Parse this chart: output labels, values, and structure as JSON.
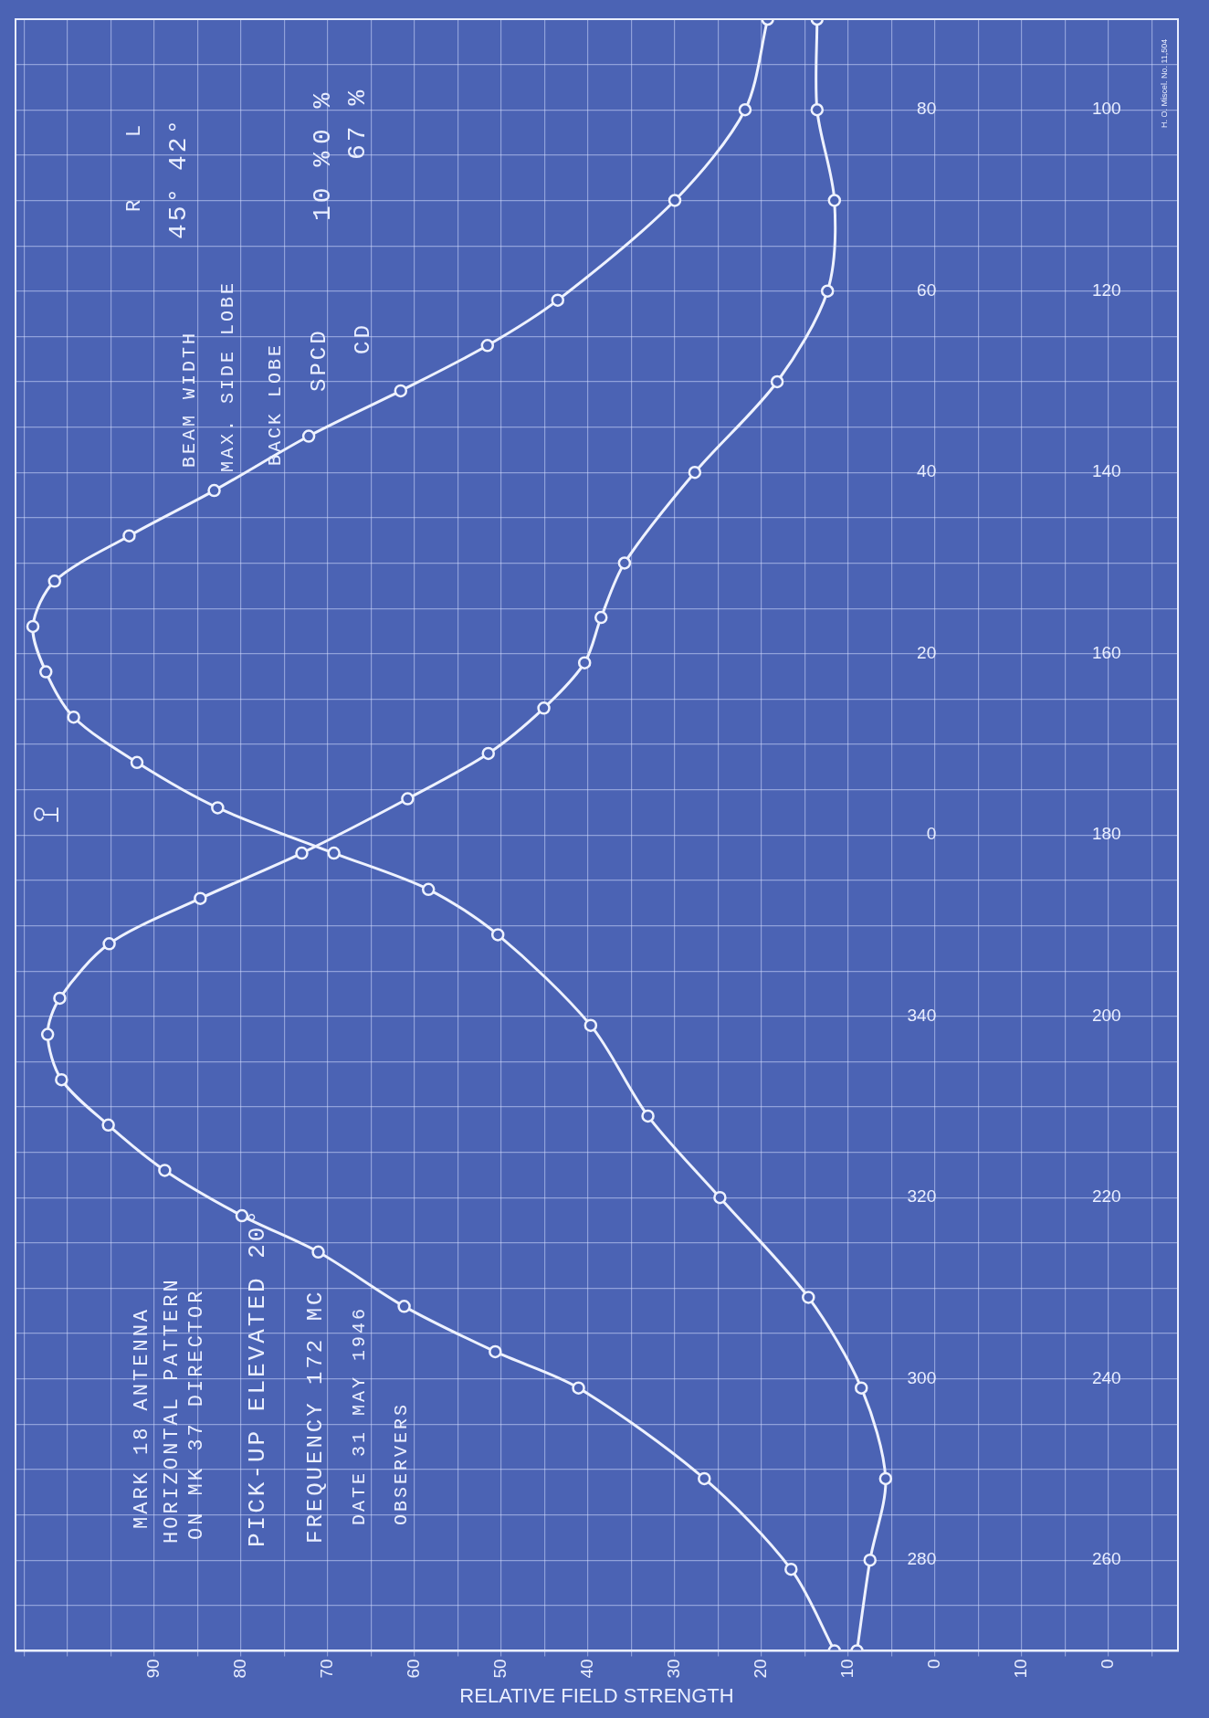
{
  "chart_data": {
    "type": "line",
    "title": "MARK 18 ANTENNA",
    "xlabel": "RELATIVE FIELD STRENGTH",
    "annotations": [
      "HORIZONTAL PATTERN",
      "ON MK 37 DIRECTOR",
      "PICK-UP ELEVATED 20°",
      "FREQUENCY 172 MC",
      "DATE 31 MAY 1946",
      "OBSERVERS",
      "BEAM WIDTH",
      "MAX. SIDE LOBE",
      "BACK LOBE",
      "SPCD",
      "CD",
      "R",
      "L",
      "45°",
      "42°",
      "10 %",
      "0 %",
      "67 %",
      "H. O. Miscel. No. 11,504"
    ],
    "series": [
      {
        "color": "#eef2ff",
        "x": [
          9,
          7.5,
          5.7,
          8.5,
          14.6,
          24.8,
          33.1,
          39.7,
          50.4,
          58.4,
          69.3,
          82.7,
          92,
          99.3,
          102.5,
          104,
          101.5,
          92.9,
          83.1,
          72.2,
          61.6,
          51.6,
          43.5,
          30,
          21.9,
          19.3
        ],
        "values": [
          -90,
          -80,
          -71,
          -61,
          -51,
          -40,
          -31,
          -21,
          -11,
          -6,
          -2,
          3,
          8,
          13,
          18,
          23,
          28,
          33,
          38,
          44,
          49,
          54,
          59,
          70,
          80,
          90
        ]
      },
      {
        "color": "#eef2ff",
        "x": [
          11.6,
          16.6,
          26.6,
          41.1,
          50.7,
          61.2,
          71.1,
          79.9,
          88.8,
          95.3,
          100.7,
          102.3,
          100.9,
          95.2,
          84.7,
          73,
          60.8,
          51.5,
          45.1,
          40.4,
          38.5,
          35.8,
          27.7,
          18.2,
          12.4,
          11.6,
          13.6,
          13.6
        ],
        "values": [
          -90,
          -81,
          -71,
          -61,
          -57,
          -52,
          -46,
          -42,
          -37,
          -32,
          -27,
          -22,
          -18,
          -12,
          -7,
          -2,
          4,
          9,
          14,
          19,
          24,
          30,
          40,
          50,
          60,
          70,
          80,
          90
        ]
      }
    ],
    "xlim": [
      106,
      -28
    ],
    "xticks": [
      {
        "value": 105,
        "label": null
      },
      {
        "value": 100,
        "label": null
      },
      {
        "value": 95,
        "label": null
      },
      90,
      {
        "value": 85,
        "label": null
      },
      80,
      {
        "value": 75,
        "label": null
      },
      70,
      {
        "value": 65,
        "label": null
      },
      60,
      {
        "value": 55,
        "label": null
      },
      50,
      {
        "value": 45,
        "label": null
      },
      40,
      {
        "value": 35,
        "label": null
      },
      30,
      {
        "value": 25,
        "label": null
      },
      20,
      {
        "value": 15,
        "label": null
      },
      10,
      {
        "value": 5,
        "label": null
      },
      0,
      {
        "value": -5,
        "label": null
      },
      {
        "value": -10,
        "label": null
      },
      {
        "value": -15,
        "label": null
      },
      {
        "value": -20,
        "label": null
      },
      {
        "value": -25,
        "label": null
      }
    ],
    "x2lim": [
      126,
      -8
    ],
    "x2ticks": [
      10,
      0
    ],
    "ylim": [
      -90,
      90
    ],
    "yticks": [
      {
        "value": -90,
        "label": null
      },
      {
        "value": -85,
        "label": null
      },
      {
        "value": -80,
        "label": null
      },
      {
        "value": -75,
        "label": null
      },
      {
        "value": -70,
        "label": null
      },
      {
        "value": -65,
        "label": null
      },
      {
        "value": -60,
        "label": null
      },
      {
        "value": -55,
        "label": null
      },
      {
        "value": -50,
        "label": null
      },
      {
        "value": -45,
        "label": null
      },
      {
        "value": -40,
        "label": null
      },
      {
        "value": -35,
        "label": null
      },
      {
        "value": -30,
        "label": null
      },
      {
        "value": -25,
        "label": null
      },
      {
        "value": -20,
        "label": null
      },
      {
        "value": -15,
        "label": null
      },
      {
        "value": -10,
        "label": null
      },
      {
        "value": -5,
        "label": null
      },
      0,
      {
        "value": 5,
        "label": null
      },
      {
        "value": 10,
        "label": null
      },
      {
        "value": 15,
        "label": null
      },
      20,
      {
        "value": 25,
        "label": null
      },
      {
        "value": 30,
        "label": null
      },
      {
        "value": 35,
        "label": null
      },
      40,
      {
        "value": 45,
        "label": null
      },
      {
        "value": 50,
        "label": null
      },
      {
        "value": 55,
        "label": null
      },
      60,
      {
        "value": 65,
        "label": null
      },
      {
        "value": 70,
        "label": null
      },
      {
        "value": 75,
        "label": null
      },
      80,
      {
        "value": 85,
        "label": null
      },
      {
        "value": 90,
        "label": null
      }
    ],
    "y3lim": [
      270,
      450
    ],
    "y3ticks": [
      280,
      300,
      320,
      340
    ],
    "y2lim": [
      270,
      90
    ],
    "y2ticks": [
      100,
      120,
      140,
      160,
      180,
      200,
      220,
      240,
      260
    ],
    "grid": true,
    "legend": false,
    "marker": "circle",
    "line_style": "solid"
  }
}
